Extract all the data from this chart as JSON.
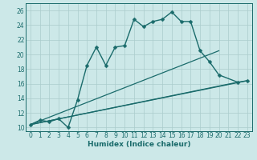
{
  "xlabel": "Humidex (Indice chaleur)",
  "bg_color": "#cce8e8",
  "grid_color": "#aacccc",
  "line_color": "#1a6b6b",
  "xlim": [
    -0.5,
    23.5
  ],
  "ylim": [
    9.5,
    27.0
  ],
  "xticks": [
    0,
    1,
    2,
    3,
    4,
    5,
    6,
    7,
    8,
    9,
    10,
    11,
    12,
    13,
    14,
    15,
    16,
    17,
    18,
    19,
    20,
    21,
    22,
    23
  ],
  "yticks": [
    10,
    12,
    14,
    16,
    18,
    20,
    22,
    24,
    26
  ],
  "main_x": [
    0,
    1,
    2,
    3,
    4,
    5,
    6,
    7,
    8,
    9,
    10,
    11,
    12,
    13,
    14,
    15,
    16,
    17,
    18,
    19,
    20,
    22,
    23
  ],
  "main_y": [
    10.4,
    11.0,
    10.8,
    11.2,
    10.0,
    13.8,
    18.5,
    21.0,
    18.5,
    21.0,
    21.2,
    24.8,
    23.8,
    24.5,
    24.8,
    25.8,
    24.5,
    24.5,
    20.5,
    19.0,
    17.2,
    16.2,
    16.4
  ],
  "straight_lines": [
    {
      "x": [
        0,
        20
      ],
      "y": [
        10.4,
        20.5
      ]
    },
    {
      "x": [
        0,
        22
      ],
      "y": [
        10.4,
        16.2
      ]
    },
    {
      "x": [
        0,
        23
      ],
      "y": [
        10.4,
        16.4
      ]
    }
  ]
}
